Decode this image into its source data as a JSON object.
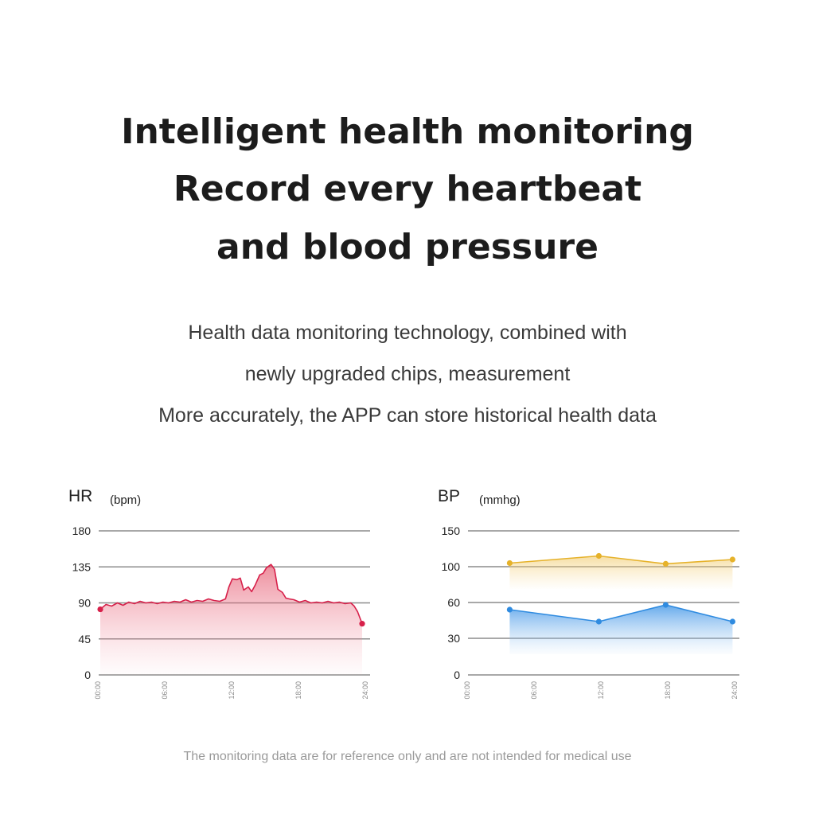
{
  "headline": {
    "line1": "Intelligent health monitoring",
    "line2": "Record every heartbeat",
    "line3": "and blood pressure"
  },
  "description": {
    "line1": "Health data monitoring technology, combined with",
    "line2": "newly upgraded chips, measurement",
    "line3": "More accurately, the APP can store historical health data"
  },
  "footnote": "The monitoring data are for reference only and are not intended for medical use",
  "colors": {
    "hr_line": "#d7204a",
    "bp_upper": "#e6b22a",
    "bp_lower": "#2f8be0"
  },
  "chart_data": [
    {
      "type": "area",
      "title": "HR",
      "unit": "(bpm)",
      "yticks": [
        0,
        45,
        90,
        135,
        180
      ],
      "ylim": [
        0,
        180
      ],
      "xticks": [
        "00:00",
        "06:00",
        "12:00",
        "18:00",
        "24:00"
      ],
      "xlim": [
        0,
        24
      ],
      "grid": true,
      "series": [
        {
          "x": [
            0,
            0.5,
            1,
            1.5,
            2,
            2.5,
            3,
            3.5,
            4,
            4.5,
            5,
            5.5,
            6,
            6.5,
            7,
            7.5,
            8,
            8.5,
            9,
            9.5,
            10,
            10.5,
            11,
            11.3,
            11.6,
            12,
            12.3,
            12.6,
            13,
            13.3,
            13.6,
            14,
            14.3,
            14.6,
            15,
            15.3,
            15.6,
            16,
            16.3,
            16.6,
            17,
            17.5,
            18,
            18.5,
            19,
            19.5,
            20,
            20.5,
            21,
            21.5,
            22,
            22.3,
            22.6,
            23
          ],
          "values": [
            82,
            88,
            86,
            90,
            87,
            91,
            89,
            92,
            90,
            91,
            89,
            91,
            90,
            92,
            91,
            94,
            91,
            93,
            92,
            95,
            93,
            92,
            95,
            110,
            120,
            119,
            121,
            106,
            110,
            104,
            112,
            125,
            127,
            134,
            138,
            132,
            107,
            103,
            96,
            95,
            94,
            91,
            93,
            90,
            91,
            90,
            92,
            90,
            91,
            89,
            90,
            86,
            79,
            64
          ]
        }
      ]
    },
    {
      "type": "area",
      "title": "BP",
      "unit": "(mmhg)",
      "yticks": [
        0,
        30,
        60,
        100,
        150
      ],
      "xticks": [
        "00:00",
        "06:00",
        "12:00",
        "18:00",
        "24:00"
      ],
      "xlim": [
        0,
        24
      ],
      "grid": true,
      "series": [
        {
          "x": [
            3.6,
            11.6,
            17.6,
            23.6
          ],
          "values": [
            105,
            115,
            104,
            110
          ]
        },
        {
          "x": [
            3.6,
            11.6,
            17.6,
            23.6
          ],
          "values": [
            54,
            44,
            58,
            44
          ]
        }
      ]
    }
  ]
}
